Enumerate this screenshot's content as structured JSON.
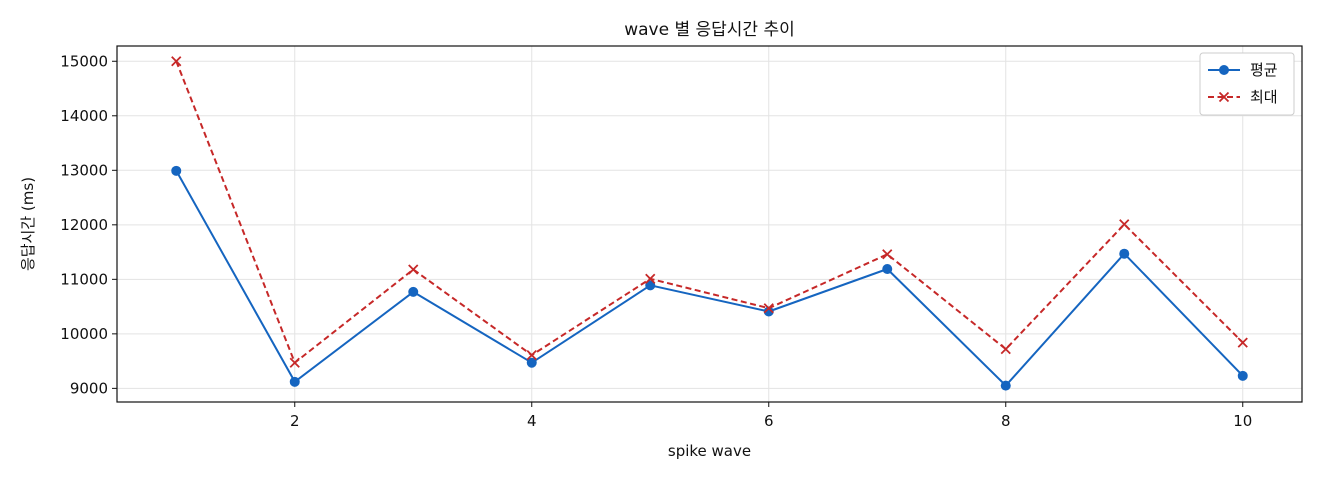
{
  "chart_data": {
    "type": "line",
    "title": "wave 별 응답시간 추이",
    "xlabel": "spike wave",
    "ylabel": "응답시간 (ms)",
    "x": [
      1,
      2,
      3,
      4,
      5,
      6,
      7,
      8,
      9,
      10
    ],
    "xlim": [
      0.5,
      10.5
    ],
    "ylim": [
      8750,
      15280
    ],
    "xticks": [
      2,
      4,
      6,
      8,
      10
    ],
    "yticks": [
      9000,
      10000,
      11000,
      12000,
      13000,
      14000,
      15000
    ],
    "grid": true,
    "legend_position": "top-right",
    "series": [
      {
        "name": "평균",
        "color": "#1565c0",
        "line_style": "solid",
        "marker": "circle",
        "values": [
          12990,
          9120,
          10770,
          9470,
          10890,
          10410,
          11190,
          9050,
          11470,
          9230
        ]
      },
      {
        "name": "최대",
        "color": "#c62828",
        "line_style": "dashed",
        "marker": "x",
        "values": [
          15000,
          9470,
          11180,
          9610,
          11010,
          10470,
          11460,
          9720,
          12010,
          9840
        ]
      }
    ]
  }
}
